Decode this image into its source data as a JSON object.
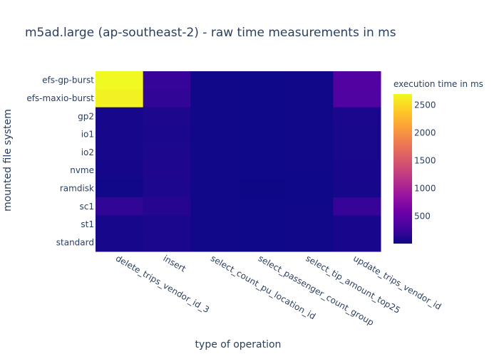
{
  "chart_data": {
    "type": "heatmap",
    "title": "m5ad.large (ap-southeast-2) - raw time measurements in ms",
    "xlabel": "type of operation",
    "ylabel": "mounted file system",
    "x": [
      "delete_trips_vendor_id_3",
      "insert",
      "select_count_pu_location_id",
      "select_passenger_count_group",
      "select_tip_amount_top25",
      "update_trips_vendor_id"
    ],
    "y": [
      "efs-gp-burst",
      "efs-maxio-burst",
      "gp2",
      "io1",
      "io2",
      "nvme",
      "ramdisk",
      "sc1",
      "st1",
      "standard"
    ],
    "z": [
      [
        2700,
        230,
        30,
        20,
        25,
        400
      ],
      [
        2650,
        200,
        30,
        20,
        25,
        380
      ],
      [
        60,
        90,
        30,
        20,
        25,
        80
      ],
      [
        55,
        85,
        30,
        20,
        25,
        75
      ],
      [
        55,
        90,
        30,
        20,
        25,
        75
      ],
      [
        50,
        110,
        30,
        20,
        25,
        70
      ],
      [
        30,
        95,
        25,
        15,
        20,
        60
      ],
      [
        200,
        140,
        30,
        20,
        25,
        230
      ],
      [
        60,
        80,
        30,
        20,
        25,
        70
      ],
      [
        55,
        80,
        30,
        20,
        25,
        70
      ]
    ],
    "colorscale": [
      "#0d0887",
      "#46039f",
      "#7201a8",
      "#9c179e",
      "#bd3786",
      "#d8576b",
      "#ed7953",
      "#fb9f3a",
      "#fdca26",
      "#f0f921"
    ],
    "colorbar": {
      "title": "execution time in ms",
      "range": [
        10,
        2700
      ],
      "ticks": [
        500,
        1000,
        1500,
        2000,
        2500
      ]
    }
  }
}
